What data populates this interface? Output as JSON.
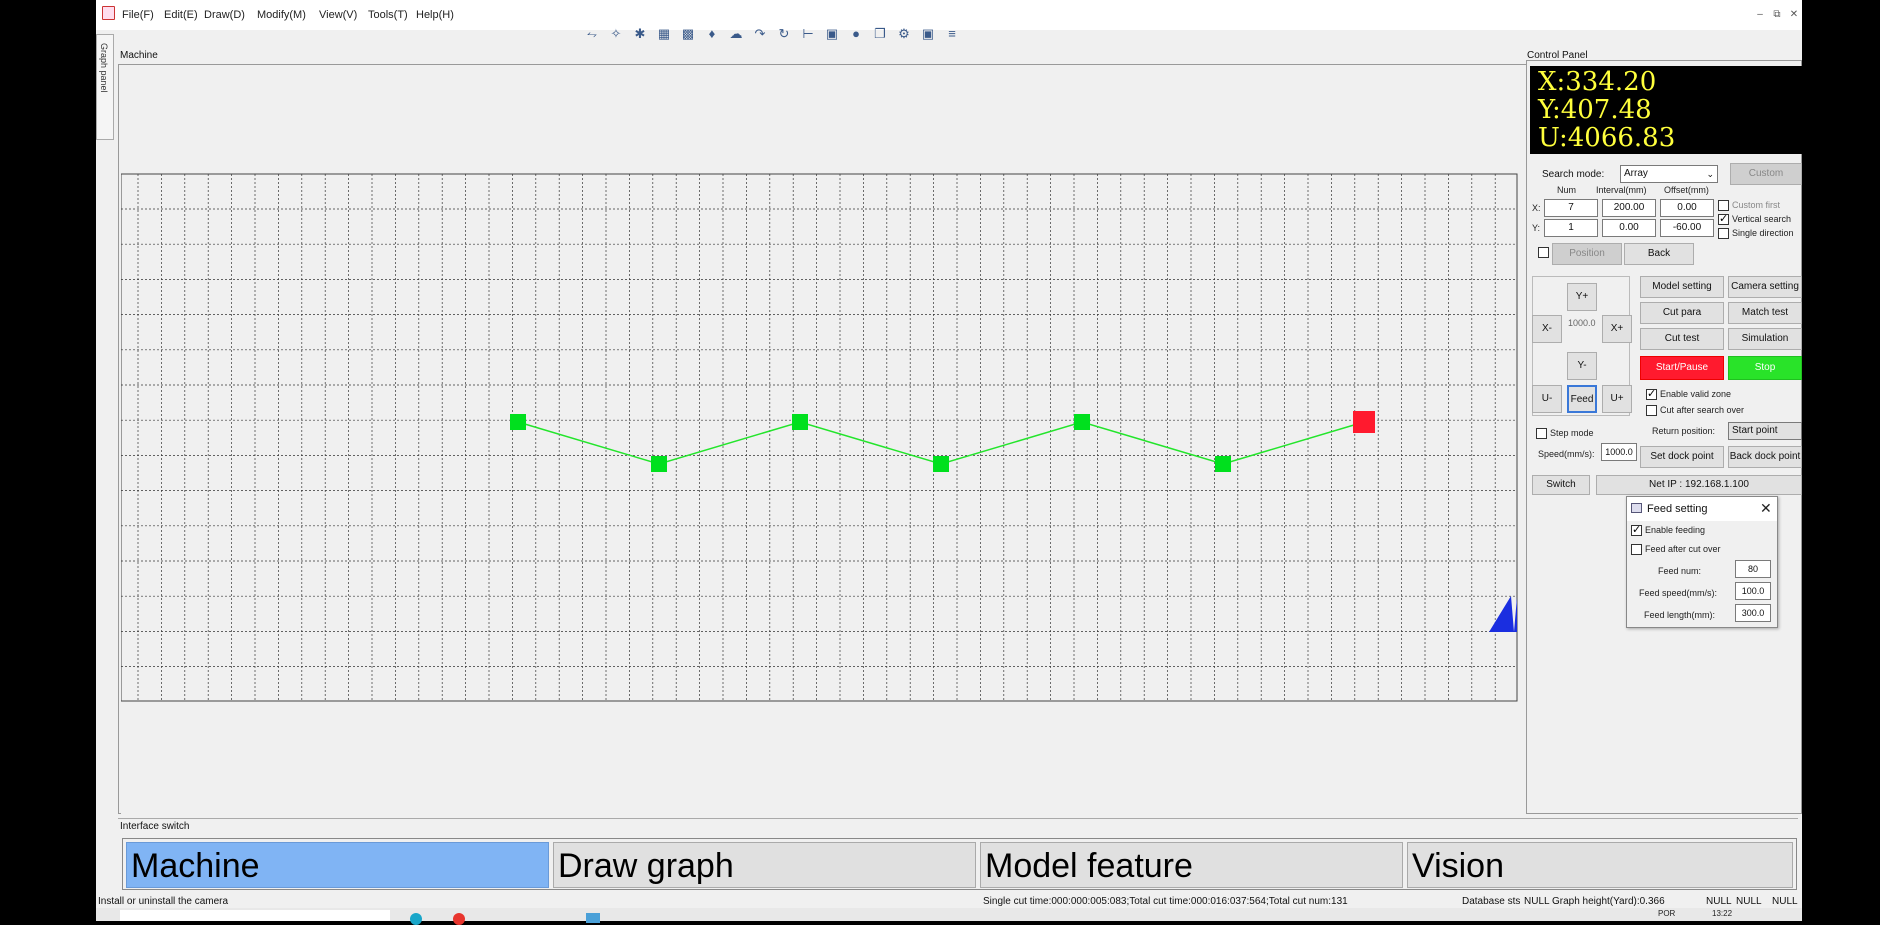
{
  "menu": [
    "File(F)",
    "Edit(E)",
    "Draw(D)",
    "Modify(M)",
    "View(V)",
    "Tools(T)",
    "Help(H)"
  ],
  "toolbar_icons": [
    "line-icon",
    "select-nodes-icon",
    "scatter-icon",
    "grid-array-icon",
    "dot-array-icon",
    "fill-icon",
    "cloud-icon",
    "path-icon",
    "rotate-icon",
    "align-icon",
    "group-icon",
    "circle-icon",
    "copy-icon",
    "settings-icon",
    "camera-icon",
    "ruler-icon"
  ],
  "side_tab": "Graph panel",
  "machine_title": "Machine",
  "control_panel_title": "Control Panel",
  "colors": {
    "accent": "#80b4f4",
    "point": "#00e01e",
    "current_point": "#ff1a2e",
    "coord_text": "#ffff3c",
    "path": "#23e52b"
  },
  "coords": {
    "x": "X:334.20",
    "y": "Y:407.48",
    "u": "U:4066.83"
  },
  "search": {
    "mode_label": "Search mode:",
    "mode_value": "Array",
    "custom_button": "Custom",
    "col_num": "Num",
    "col_interval": "Interval(mm)",
    "col_offset": "Offset(mm)",
    "x_label": "X:",
    "x_num": "7",
    "x_interval": "200.00",
    "x_offset": "0.00",
    "y_label": "Y:",
    "y_num": "1",
    "y_interval": "0.00",
    "y_offset": "-60.00",
    "custom_first": "Custom first",
    "vertical_search": "Vertical search",
    "single_direction": "Single direction",
    "position_button": "Position",
    "back_button": "Back"
  },
  "jog": {
    "y_plus": "Y+",
    "y_minus": "Y-",
    "x_plus": "X+",
    "x_minus": "X-",
    "u_plus": "U+",
    "u_minus": "U-",
    "step": "1000.0",
    "feed": "Feed"
  },
  "actions": {
    "model_setting": "Model setting",
    "camera_setting": "Camera setting",
    "cut_para": "Cut para",
    "match_test": "Match test",
    "cut_test": "Cut test",
    "simulation": "Simulation",
    "start_pause": "Start/Pause",
    "stop": "Stop"
  },
  "options": {
    "enable_valid_zone": "Enable valid zone",
    "cut_after_search": "Cut after search over",
    "step_mode": "Step mode",
    "speed_label": "Speed(mm/s):",
    "speed_value": "1000.0",
    "return_position_label": "Return position:",
    "return_position_value": "Start point",
    "set_dock_point": "Set dock point",
    "back_dock_point": "Back dock point",
    "switch": "Switch",
    "net_ip": "Net IP : 192.168.1.100"
  },
  "feed_dialog": {
    "title": "Feed setting",
    "enable_feeding": "Enable feeding",
    "feed_after_cut": "Feed after cut over",
    "feed_num_label": "Feed num:",
    "feed_num": "80",
    "feed_speed_label": "Feed speed(mm/s):",
    "feed_speed": "100.0",
    "feed_length_label": "Feed length(mm):",
    "feed_length": "300.0"
  },
  "interface_switch_title": "Interface switch",
  "tabs": [
    "Machine",
    "Draw graph",
    "Model feature",
    "Vision"
  ],
  "status": {
    "left": "Install or uninstall the camera",
    "mid": "Single cut time:000:000:005:083;Total cut time:000:016:037:564;Total cut num:131",
    "db": "Database sts",
    "graph": "NULL Graph height(Yard):0.366",
    "null1": "NULL",
    "null2": "NULL",
    "null3": "NULL"
  },
  "taskbar": {
    "lang": "POR",
    "time": "13:22"
  }
}
